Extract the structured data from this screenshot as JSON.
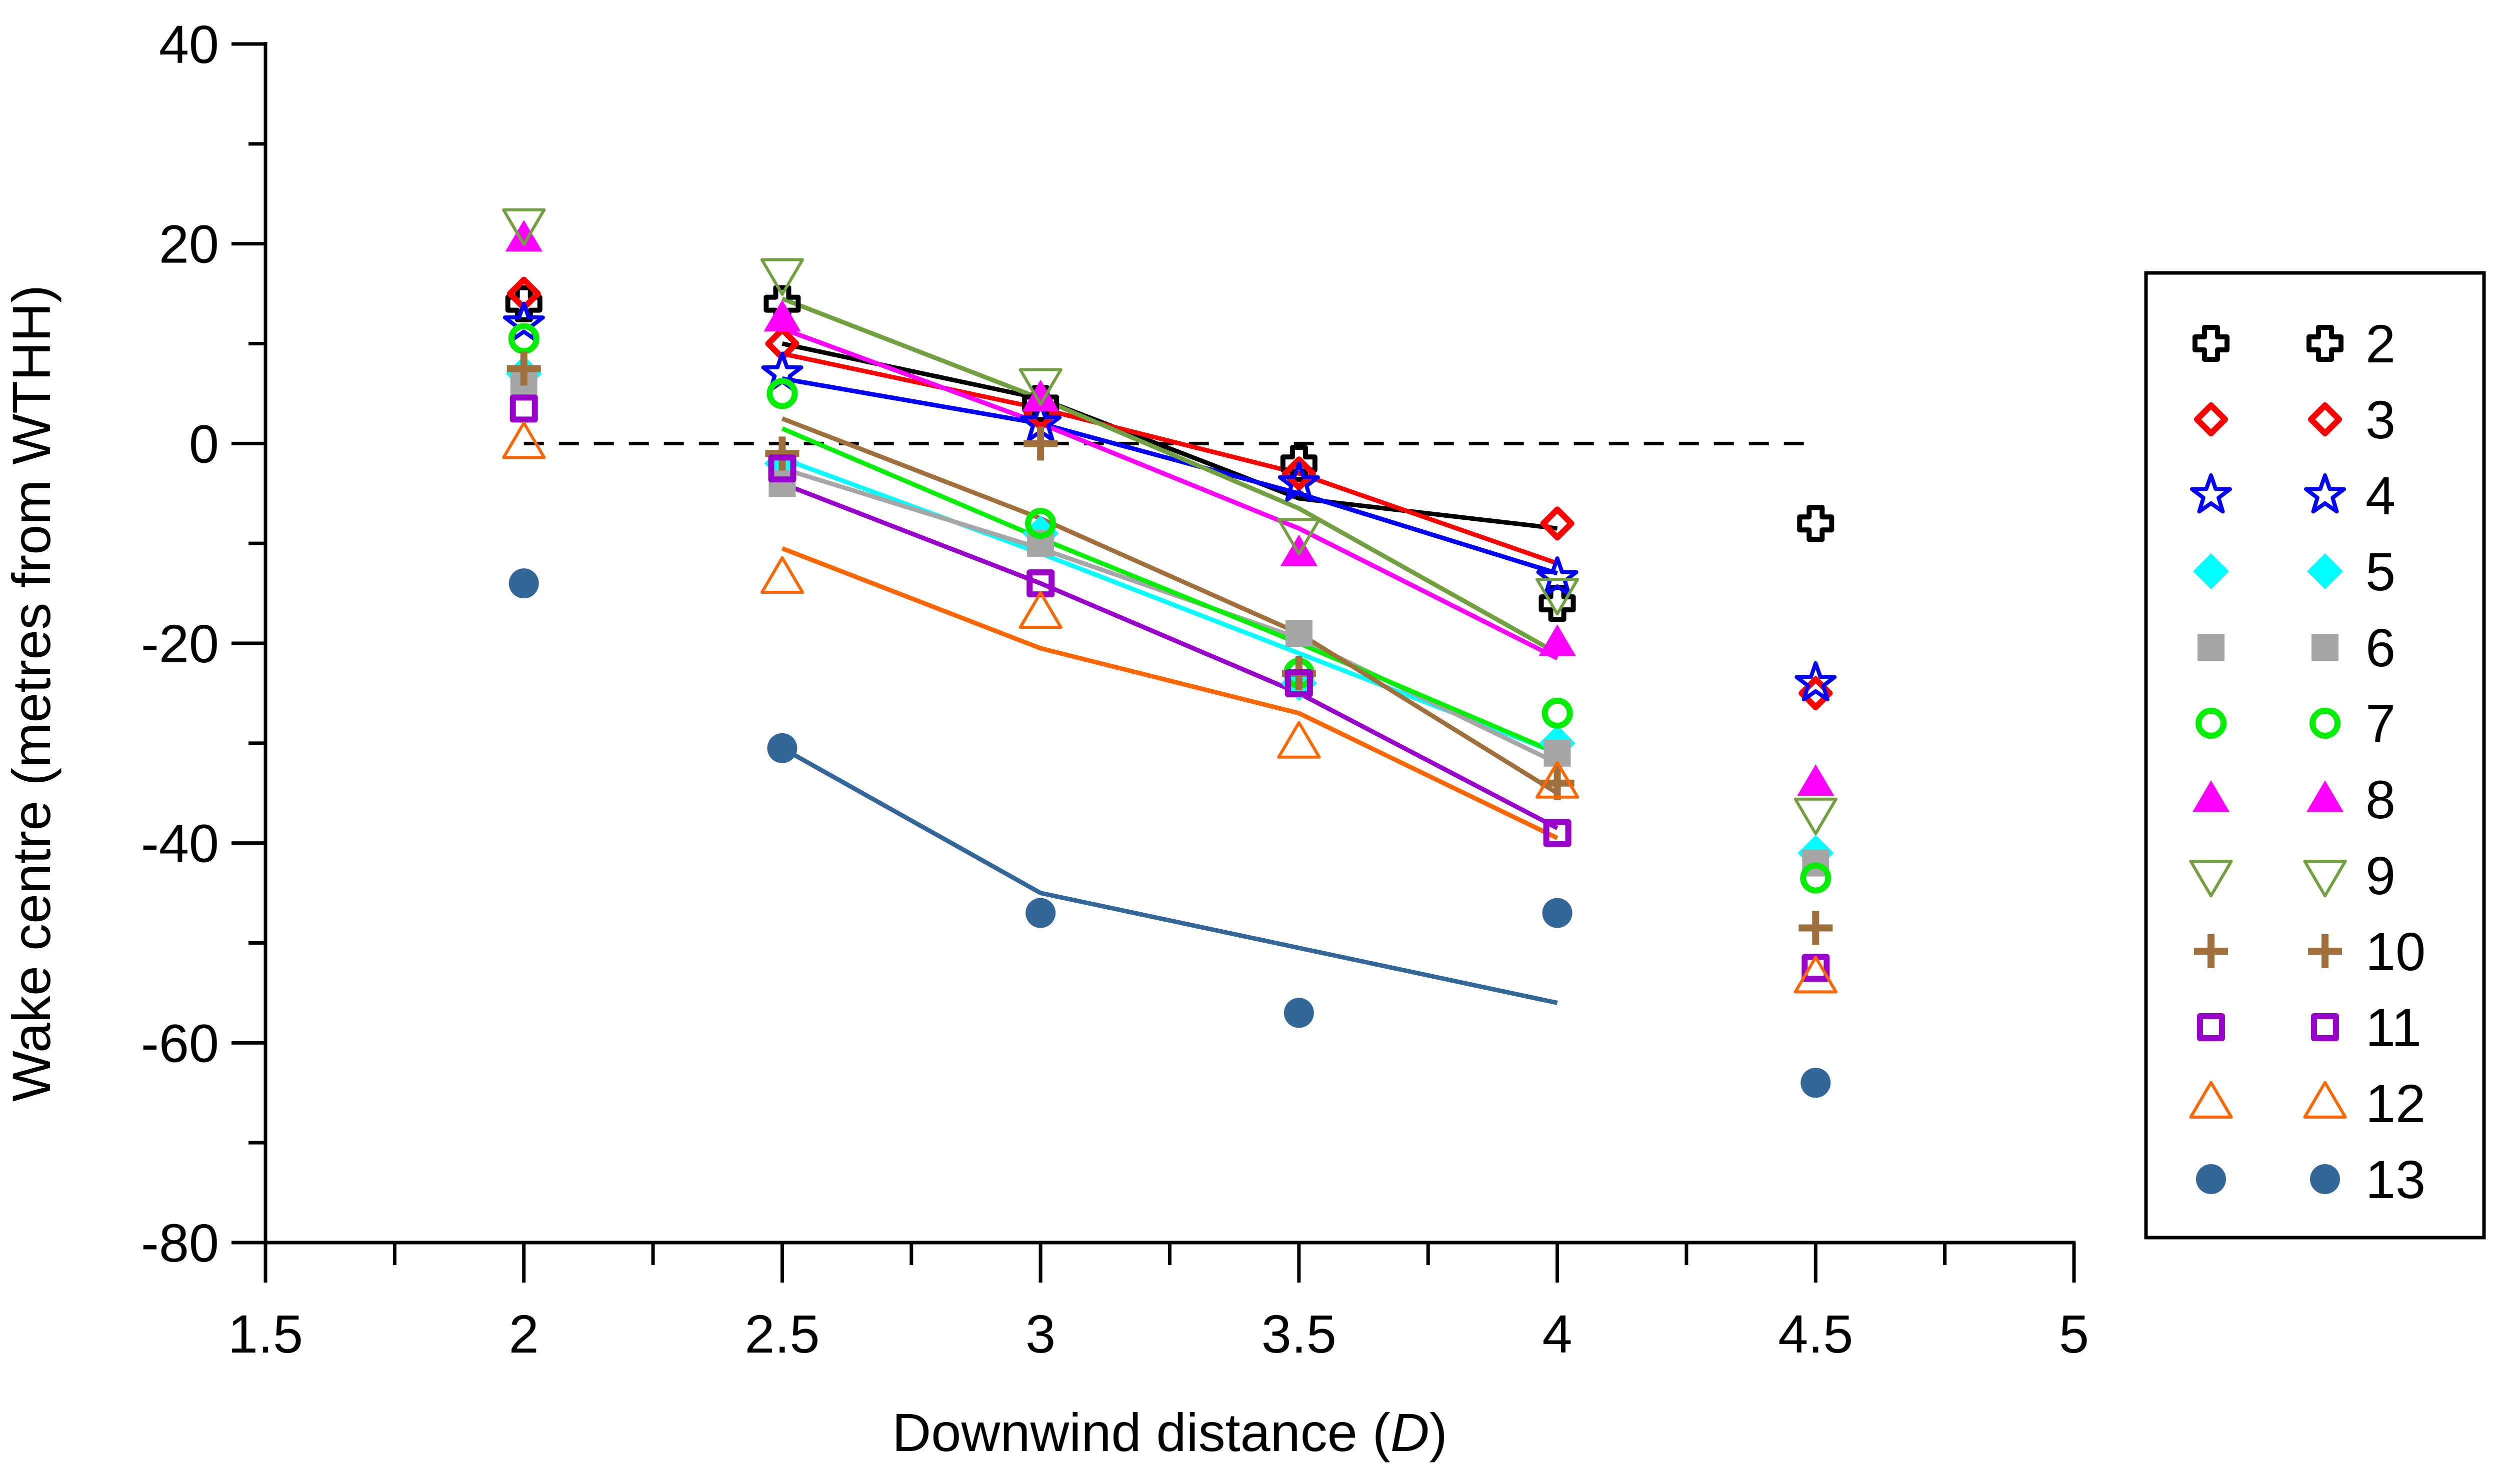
{
  "chart_data": {
    "type": "scatter",
    "title": "",
    "xlabel_main": "Downwind distance (",
    "xlabel_italic": "D",
    "xlabel_end": ")",
    "ylabel": "Wake centre (metres from WTHH)",
    "xlim": [
      1.5,
      5
    ],
    "ylim": [
      -80,
      40
    ],
    "xticks_major": [
      1.5,
      2,
      2.5,
      3,
      3.5,
      4,
      4.5,
      5
    ],
    "xtick_labels": [
      "1.5",
      "2",
      "2.5",
      "3",
      "3.5",
      "4",
      "4.5",
      "5"
    ],
    "xticks_minor": [
      1.75,
      2.25,
      2.75,
      3.25,
      3.75,
      4.25,
      4.75
    ],
    "yticks_major": [
      -80,
      -60,
      -40,
      -20,
      0,
      20,
      40
    ],
    "ytick_labels": [
      "-80",
      "-60",
      "-40",
      "-20",
      "0",
      "20",
      "40"
    ],
    "yticks_minor": [
      -70,
      -50,
      -30,
      -10,
      10,
      30
    ],
    "reference_line": {
      "y": 0,
      "x_start": 2,
      "x_end": 4.5,
      "style": "dashed"
    },
    "legend": {
      "position": "right",
      "entries": [
        "2",
        "3",
        "4",
        "5",
        "6",
        "7",
        "8",
        "9",
        "10",
        "11",
        "12",
        "13"
      ]
    },
    "series": [
      {
        "name": "2",
        "color": "#000000",
        "marker": "open-cross",
        "x": [
          2,
          2.5,
          3,
          3.5,
          4,
          4.5
        ],
        "y": [
          14,
          14,
          4,
          -2,
          -16,
          -8
        ],
        "fit_x": [
          2.5,
          3,
          3.5,
          4
        ],
        "fit_y": [
          10,
          4.5,
          -5.5,
          -8.5
        ]
      },
      {
        "name": "3",
        "color": "#ff0000",
        "marker": "open-diamond",
        "x": [
          2,
          2.5,
          3,
          3.5,
          4,
          4.5
        ],
        "y": [
          15,
          10,
          3,
          -3,
          -8,
          -25
        ],
        "fit_x": [
          2.5,
          3,
          3.5,
          4
        ],
        "fit_y": [
          9,
          3.5,
          -3,
          -12
        ]
      },
      {
        "name": "4",
        "color": "#0000ff",
        "marker": "open-star",
        "x": [
          2,
          2.5,
          3,
          3.5,
          4,
          4.5
        ],
        "y": [
          12,
          7,
          2,
          -4,
          -13.5,
          -24
        ],
        "fit_x": [
          2.5,
          3,
          3.5,
          4
        ],
        "fit_y": [
          6.5,
          2,
          -5,
          -13
        ]
      },
      {
        "name": "5",
        "color": "#00ffff",
        "marker": "filled-diamond",
        "x": [
          2,
          2.5,
          3,
          3.5,
          4,
          4.5
        ],
        "y": [
          7,
          -2,
          -9,
          -24,
          -30,
          -41
        ],
        "fit_x": [
          2.5,
          3,
          3.5,
          4
        ],
        "fit_y": [
          -1.5,
          -11,
          -21,
          -31
        ]
      },
      {
        "name": "6",
        "color": "#a6a6a6",
        "marker": "filled-square",
        "x": [
          2,
          2.5,
          3,
          3.5,
          4,
          4.5
        ],
        "y": [
          6,
          -4,
          -10,
          -19,
          -31,
          -42
        ],
        "fit_x": [
          2.5,
          3,
          3.5,
          4
        ],
        "fit_y": [
          -2.5,
          -10.5,
          -19.5,
          -32
        ]
      },
      {
        "name": "7",
        "color": "#00ee00",
        "marker": "open-circle",
        "x": [
          2,
          2.5,
          3,
          3.5,
          4,
          4.5
        ],
        "y": [
          10.5,
          5,
          -8,
          -23,
          -27,
          -43.5
        ],
        "fit_x": [
          2.5,
          3,
          3.5,
          4
        ],
        "fit_y": [
          1.5,
          -9.5,
          -20,
          -31
        ]
      },
      {
        "name": "8",
        "color": "#ff00ff",
        "marker": "filled-triangle",
        "x": [
          2,
          2.5,
          3,
          3.5,
          4,
          4.5
        ],
        "y": [
          20.5,
          12.5,
          4.5,
          -11,
          -20,
          -34
        ],
        "fit_x": [
          2.5,
          3,
          3.5,
          4
        ],
        "fit_y": [
          11.5,
          2,
          -8.5,
          -21.5
        ]
      },
      {
        "name": "9",
        "color": "#70a040",
        "marker": "open-triangle-down",
        "x": [
          2,
          2.5,
          3,
          3.5,
          4,
          4.5
        ],
        "y": [
          22,
          17,
          6,
          -9,
          -15,
          -37
        ],
        "fit_x": [
          2.5,
          3,
          3.5,
          4
        ],
        "fit_y": [
          14.5,
          4.5,
          -6.5,
          -21
        ]
      },
      {
        "name": "10",
        "color": "#a0703c",
        "marker": "plus",
        "x": [
          2,
          2.5,
          3,
          3.5,
          4,
          4.5
        ],
        "y": [
          7.5,
          -1,
          0,
          -23,
          -34,
          -48.5
        ],
        "fit_x": [
          2.5,
          3,
          3.5,
          4
        ],
        "fit_y": [
          2.5,
          -7.5,
          -19,
          -35
        ]
      },
      {
        "name": "11",
        "color": "#9900cc",
        "marker": "open-square",
        "x": [
          2,
          2.5,
          3,
          3.5,
          4,
          4.5
        ],
        "y": [
          3.5,
          -2.5,
          -14,
          -24,
          -39,
          -52.5
        ],
        "fit_x": [
          2.5,
          3,
          3.5,
          4
        ],
        "fit_y": [
          -4,
          -14,
          -25,
          -38.5
        ]
      },
      {
        "name": "12",
        "color": "#ff6600",
        "marker": "open-triangle",
        "x": [
          2,
          2.5,
          3,
          3.5,
          4,
          4.5
        ],
        "y": [
          0,
          -13.5,
          -17,
          -30,
          -34,
          -53.5
        ],
        "fit_x": [
          2.5,
          3,
          3.5,
          4
        ],
        "fit_y": [
          -10.5,
          -20.5,
          -27,
          -39.5
        ]
      },
      {
        "name": "13",
        "color": "#336699",
        "marker": "filled-circle",
        "x": [
          2,
          2.5,
          3,
          3.5,
          4,
          4.5
        ],
        "y": [
          -14,
          -30.5,
          -47,
          -57,
          -47,
          -64
        ],
        "fit_x": [
          2.5,
          3,
          3.5,
          4
        ],
        "fit_y": [
          -30.5,
          -45,
          -50.5,
          -56
        ]
      }
    ]
  }
}
